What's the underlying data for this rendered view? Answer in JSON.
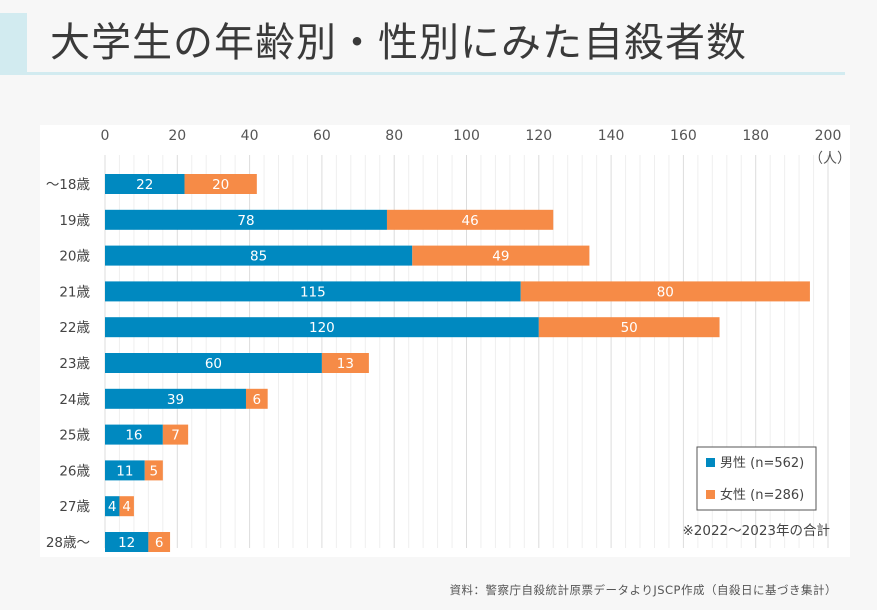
{
  "page": {
    "title": "大学生の年齢別・性別にみた自殺者数",
    "source": "資料：警察庁自殺統計原票データよりJSCP作成（自殺日に基づき集計）"
  },
  "colors": {
    "male": "#0089c0",
    "female": "#f68b47",
    "accent": "#d2ebf0"
  },
  "chart_data": {
    "type": "bar",
    "orientation": "horizontal",
    "stacked": true,
    "title": "大学生の年齢別・性別にみた自殺者数",
    "xlabel": "（人）",
    "ylabel": "",
    "xlim": [
      0,
      200
    ],
    "xticks": [
      0,
      20,
      40,
      60,
      80,
      100,
      120,
      140,
      160,
      180,
      200
    ],
    "grid": true,
    "categories": [
      "〜18歳",
      "19歳",
      "20歳",
      "21歳",
      "22歳",
      "23歳",
      "24歳",
      "25歳",
      "26歳",
      "27歳",
      "28歳〜"
    ],
    "series": [
      {
        "name": "男性 (n=562)",
        "values": [
          22,
          78,
          85,
          115,
          120,
          60,
          39,
          16,
          11,
          4,
          12
        ]
      },
      {
        "name": "女性 (n=286)",
        "values": [
          20,
          46,
          49,
          80,
          50,
          13,
          6,
          7,
          5,
          4,
          6
        ]
      }
    ],
    "legend_position": "bottom-right",
    "annotation": "※2022〜2023年の合計"
  }
}
